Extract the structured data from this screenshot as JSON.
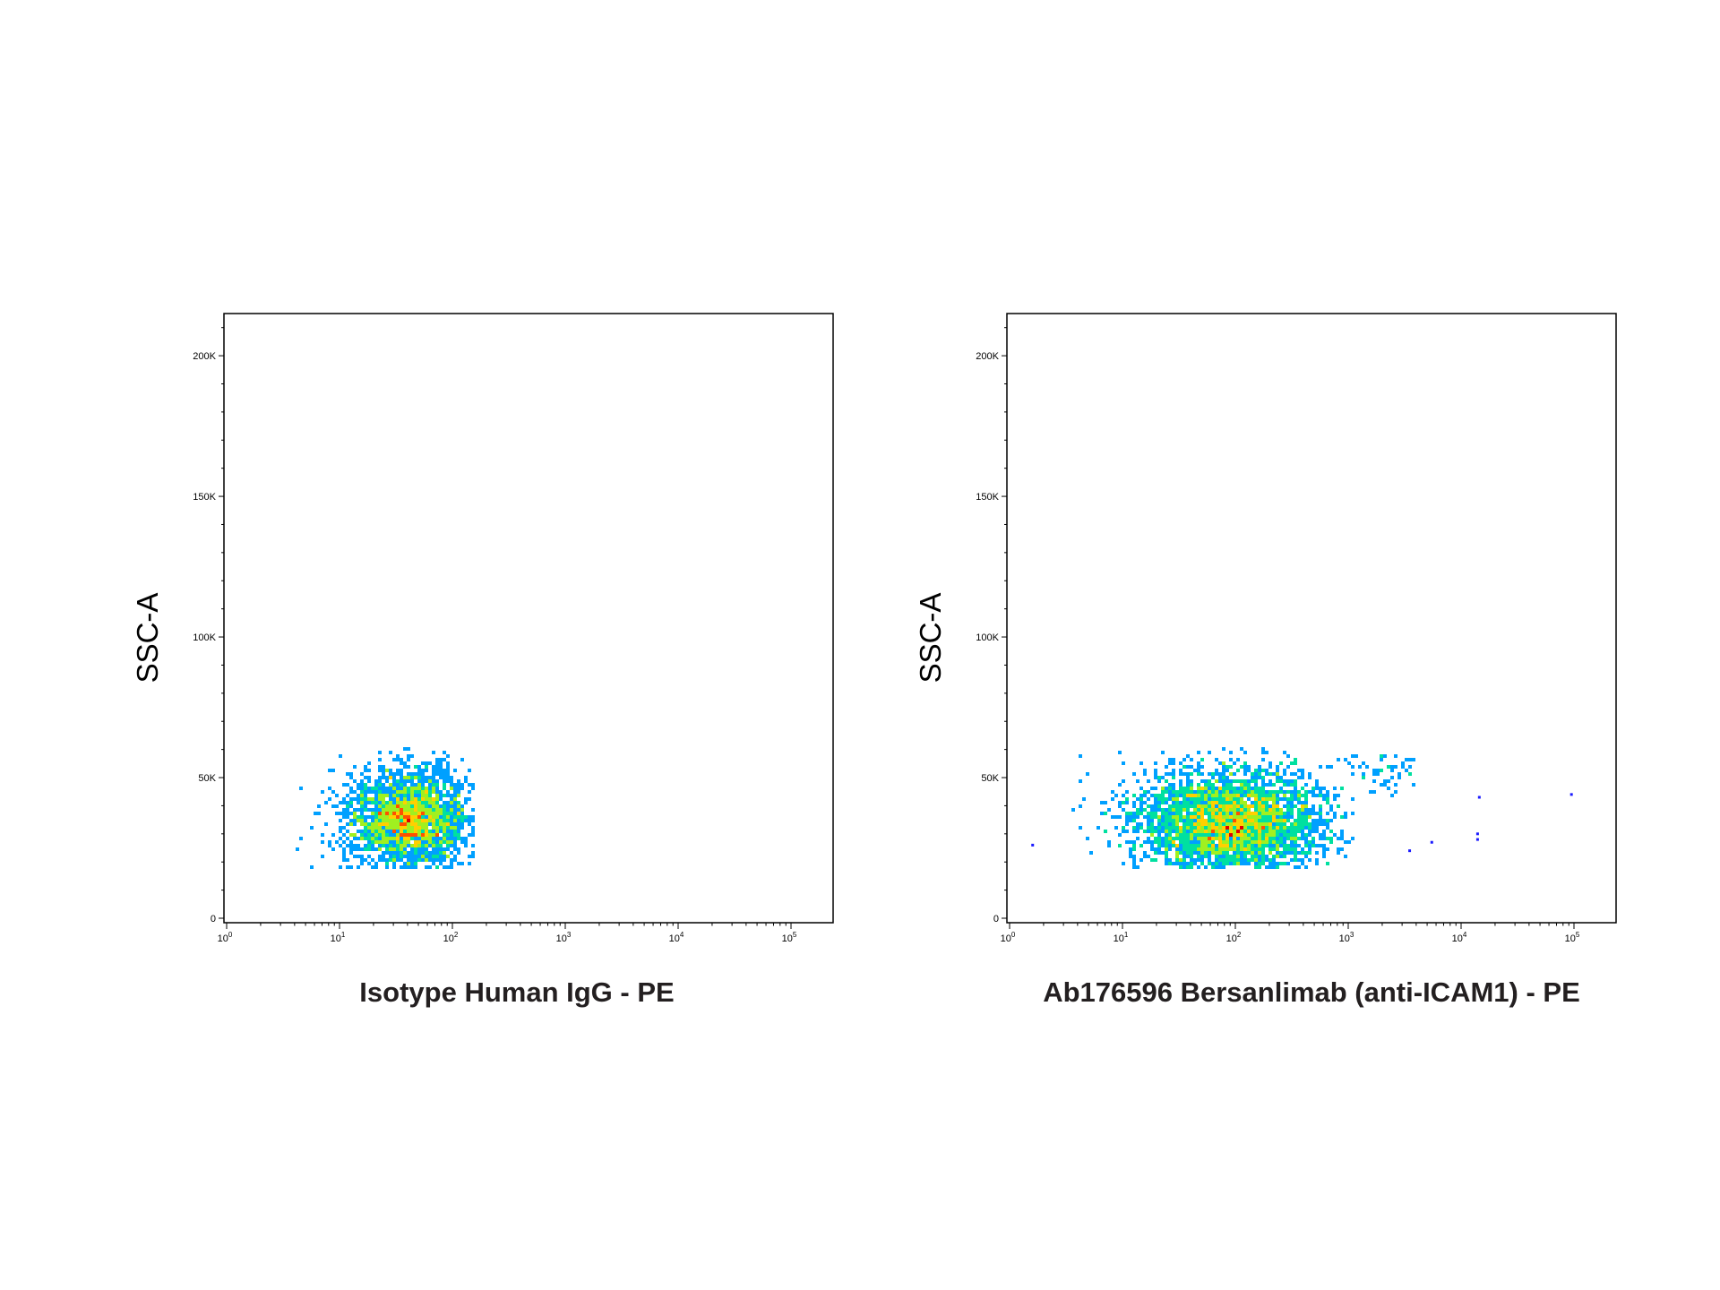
{
  "chart_data": [
    {
      "type": "scatter",
      "subtype": "flow-cytometry density dot plot",
      "xlabel": "Isotype Human IgG - PE",
      "ylabel": "SSC-A",
      "x_scale": "log",
      "xlim": [
        1,
        100000
      ],
      "ylim": [
        0,
        215000
      ],
      "x_ticks": [
        {
          "base": "10",
          "exp": "0"
        },
        {
          "base": "10",
          "exp": "1"
        },
        {
          "base": "10",
          "exp": "2"
        },
        {
          "base": "10",
          "exp": "3"
        },
        {
          "base": "10",
          "exp": "4"
        },
        {
          "base": "10",
          "exp": "5"
        }
      ],
      "y_ticks": [
        "0",
        "50K",
        "100K",
        "150K",
        "200K"
      ],
      "y_tick_values": [
        0,
        50000,
        100000,
        150000,
        200000
      ],
      "grid": false,
      "colormap": [
        "#1a1aff",
        "#00a0ff",
        "#00e0a0",
        "#a0f020",
        "#ffd000",
        "#ff5000",
        "#e00000"
      ],
      "populations": [
        {
          "x_center": 40,
          "x_log_sd": 0.28,
          "x_range": [
            4,
            160
          ],
          "y_center": 35000,
          "y_sd": 9000,
          "y_range": [
            18000,
            60000
          ],
          "events": 2600
        }
      ],
      "outliers": []
    },
    {
      "type": "scatter",
      "subtype": "flow-cytometry density dot plot",
      "xlabel": "Ab176596 Bersanlimab (anti-ICAM1) - PE",
      "ylabel": "SSC-A",
      "x_scale": "log",
      "xlim": [
        1,
        100000
      ],
      "ylim": [
        0,
        215000
      ],
      "x_ticks": [
        {
          "base": "10",
          "exp": "0"
        },
        {
          "base": "10",
          "exp": "1"
        },
        {
          "base": "10",
          "exp": "2"
        },
        {
          "base": "10",
          "exp": "3"
        },
        {
          "base": "10",
          "exp": "4"
        },
        {
          "base": "10",
          "exp": "5"
        }
      ],
      "y_ticks": [
        "0",
        "50K",
        "100K",
        "150K",
        "200K"
      ],
      "y_tick_values": [
        0,
        50000,
        100000,
        150000,
        200000
      ],
      "grid": false,
      "colormap": [
        "#1a1aff",
        "#00a0ff",
        "#00e0a0",
        "#a0f020",
        "#ffd000",
        "#ff5000",
        "#e00000"
      ],
      "populations": [
        {
          "x_center": 90,
          "x_log_sd": 0.42,
          "x_range": [
            3,
            1200
          ],
          "y_center": 34000,
          "y_sd": 9500,
          "y_range": [
            18000,
            60000
          ],
          "events": 3400
        },
        {
          "x_center": 2200,
          "x_log_sd": 0.18,
          "x_range": [
            800,
            4000
          ],
          "y_center": 52000,
          "y_sd": 4000,
          "y_range": [
            42000,
            60000
          ],
          "events": 60
        }
      ],
      "outliers": [
        {
          "x": 1.6,
          "y": 26000
        },
        {
          "x": 3500,
          "y": 24000
        },
        {
          "x": 5500,
          "y": 27000
        },
        {
          "x": 14000,
          "y": 28000
        },
        {
          "x": 14000,
          "y": 30000
        },
        {
          "x": 14500,
          "y": 43000
        },
        {
          "x": 95000,
          "y": 44000
        }
      ]
    }
  ]
}
